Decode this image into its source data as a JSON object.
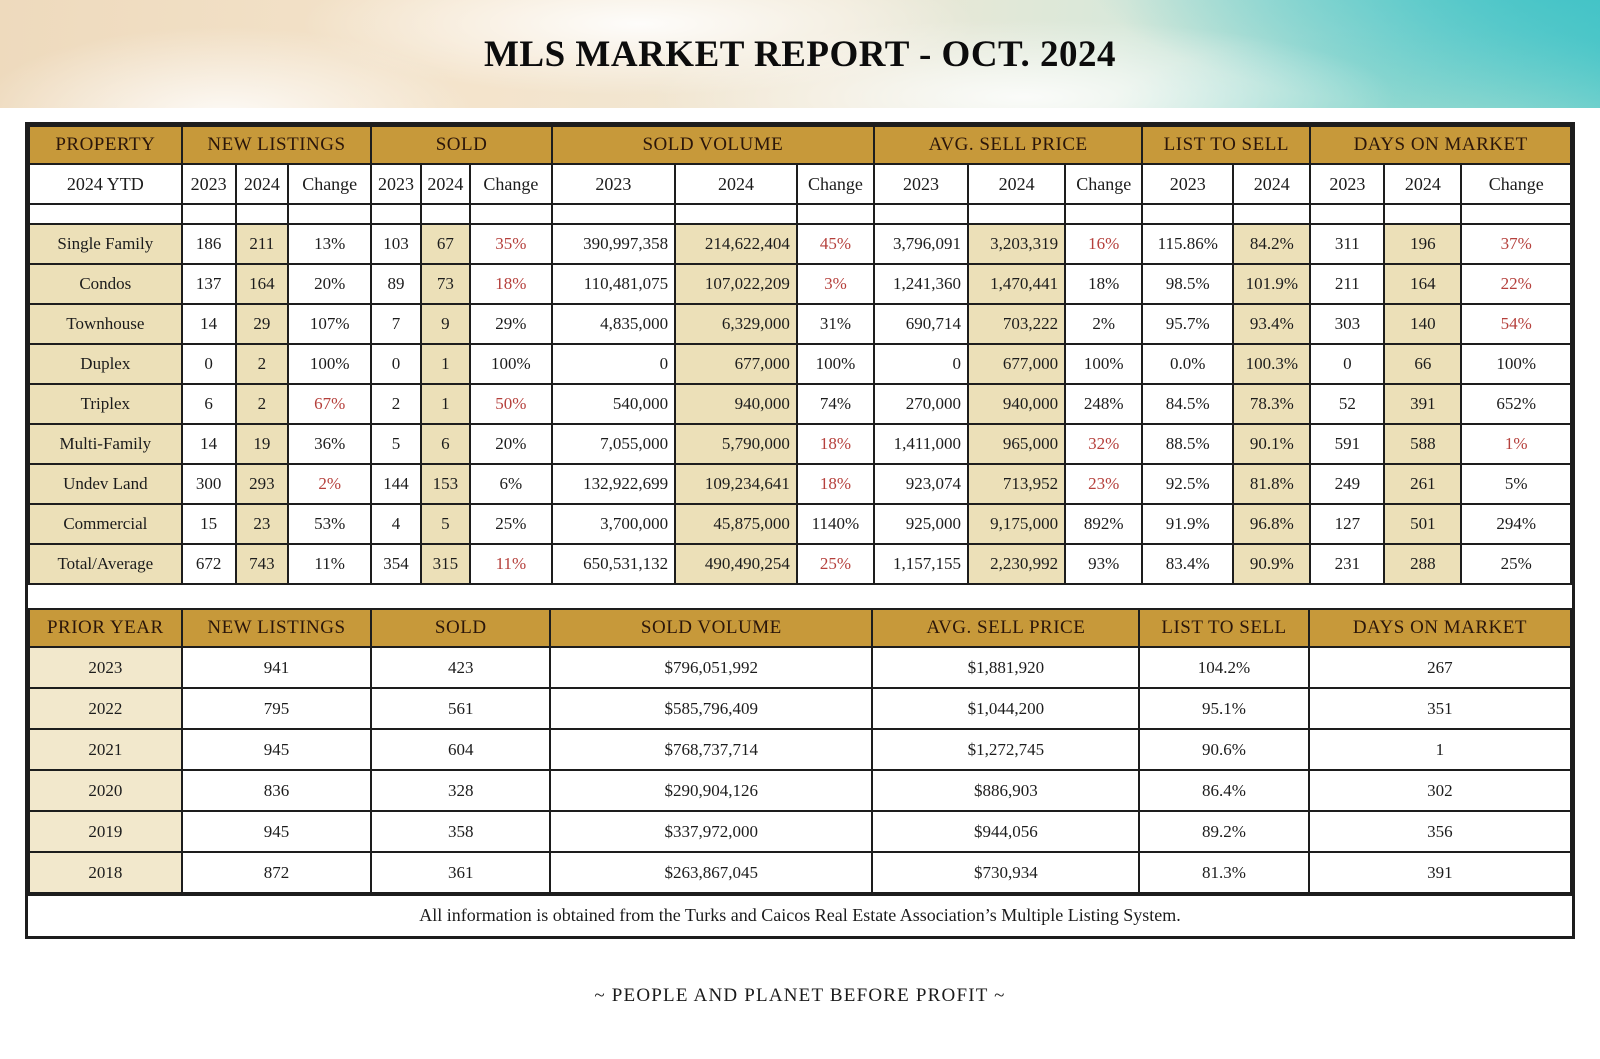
{
  "banner": {
    "title": "MLS MARKET REPORT - OCT. 2024"
  },
  "colors": {
    "gold": "#c7993a",
    "beige": "#ece0b8",
    "beige_light": "#f2e8cc",
    "negative_red": "#b5403c",
    "border": "#1d1d1d",
    "header_text": "#2b160a"
  },
  "ytd_table": {
    "groups": [
      {
        "label": "PROPERTY",
        "span": 1
      },
      {
        "label": "NEW LISTINGS",
        "span": 3
      },
      {
        "label": "SOLD",
        "span": 3
      },
      {
        "label": "SOLD VOLUME",
        "span": 3
      },
      {
        "label": "AVG. SELL PRICE",
        "span": 3
      },
      {
        "label": "LIST TO SELL",
        "span": 2
      },
      {
        "label": "DAYS ON MARKET",
        "span": 3
      }
    ],
    "subheader": [
      "2024 YTD",
      "2023",
      "2024",
      "Change",
      "2023",
      "2024",
      "Change",
      "2023",
      "2024",
      "Change",
      "2023",
      "2024",
      "Change",
      "2023",
      "2024",
      "2023",
      "2024",
      "Change"
    ],
    "rows": [
      {
        "cells": [
          "Single Family",
          "186",
          "211",
          "13%",
          "103",
          "67",
          "35%",
          "390,997,358",
          "214,622,404",
          "45%",
          "3,796,091",
          "3,203,319",
          "16%",
          "115.86%",
          "84.2%",
          "311",
          "196",
          "37%"
        ],
        "red": [
          6,
          9,
          12,
          17
        ]
      },
      {
        "cells": [
          "Condos",
          "137",
          "164",
          "20%",
          "89",
          "73",
          "18%",
          "110,481,075",
          "107,022,209",
          "3%",
          "1,241,360",
          "1,470,441",
          "18%",
          "98.5%",
          "101.9%",
          "211",
          "164",
          "22%"
        ],
        "red": [
          6,
          9,
          17
        ]
      },
      {
        "cells": [
          "Townhouse",
          "14",
          "29",
          "107%",
          "7",
          "9",
          "29%",
          "4,835,000",
          "6,329,000",
          "31%",
          "690,714",
          "703,222",
          "2%",
          "95.7%",
          "93.4%",
          "303",
          "140",
          "54%"
        ],
        "red": [
          17
        ]
      },
      {
        "cells": [
          "Duplex",
          "0",
          "2",
          "100%",
          "0",
          "1",
          "100%",
          "0",
          "677,000",
          "100%",
          "0",
          "677,000",
          "100%",
          "0.0%",
          "100.3%",
          "0",
          "66",
          "100%"
        ],
        "red": []
      },
      {
        "cells": [
          "Triplex",
          "6",
          "2",
          "67%",
          "2",
          "1",
          "50%",
          "540,000",
          "940,000",
          "74%",
          "270,000",
          "940,000",
          "248%",
          "84.5%",
          "78.3%",
          "52",
          "391",
          "652%"
        ],
        "red": [
          3,
          6
        ]
      },
      {
        "cells": [
          "Multi-Family",
          "14",
          "19",
          "36%",
          "5",
          "6",
          "20%",
          "7,055,000",
          "5,790,000",
          "18%",
          "1,411,000",
          "965,000",
          "32%",
          "88.5%",
          "90.1%",
          "591",
          "588",
          "1%"
        ],
        "red": [
          9,
          12,
          17
        ]
      },
      {
        "cells": [
          "Undev Land",
          "300",
          "293",
          "2%",
          "144",
          "153",
          "6%",
          "132,922,699",
          "109,234,641",
          "18%",
          "923,074",
          "713,952",
          "23%",
          "92.5%",
          "81.8%",
          "249",
          "261",
          "5%"
        ],
        "red": [
          3,
          9,
          12
        ]
      },
      {
        "cells": [
          "Commercial",
          "15",
          "23",
          "53%",
          "4",
          "5",
          "25%",
          "3,700,000",
          "45,875,000",
          "1140%",
          "925,000",
          "9,175,000",
          "892%",
          "91.9%",
          "96.8%",
          "127",
          "501",
          "294%"
        ],
        "red": []
      },
      {
        "cells": [
          "Total/Average",
          "672",
          "743",
          "11%",
          "354",
          "315",
          "11%",
          "650,531,132",
          "490,490,254",
          "25%",
          "1,157,155",
          "2,230,992",
          "93%",
          "83.4%",
          "90.9%",
          "231",
          "288",
          "25%"
        ],
        "red": [
          6,
          9
        ]
      }
    ]
  },
  "prior_table": {
    "headers": [
      "PRIOR YEAR",
      "NEW LISTINGS",
      "SOLD",
      "SOLD VOLUME",
      "AVG. SELL PRICE",
      "LIST TO SELL",
      "DAYS ON MARKET"
    ],
    "rows": [
      [
        "2023",
        "941",
        "423",
        "$796,051,992",
        "$1,881,920",
        "104.2%",
        "267"
      ],
      [
        "2022",
        "795",
        "561",
        "$585,796,409",
        "$1,044,200",
        "95.1%",
        "351"
      ],
      [
        "2021",
        "945",
        "604",
        "$768,737,714",
        "$1,272,745",
        "90.6%",
        "1"
      ],
      [
        "2020",
        "836",
        "328",
        "$290,904,126",
        "$886,903",
        "86.4%",
        "302"
      ],
      [
        "2019",
        "945",
        "358",
        "$337,972,000",
        "$944,056",
        "89.2%",
        "356"
      ],
      [
        "2018",
        "872",
        "361",
        "$263,867,045",
        "$730,934",
        "81.3%",
        "391"
      ]
    ]
  },
  "footer_note": "All information is obtained from the Turks and Caicos Real Estate Association’s Multiple Listing System.",
  "slogan": "~ PEOPLE AND PLANET BEFORE PROFIT ~"
}
